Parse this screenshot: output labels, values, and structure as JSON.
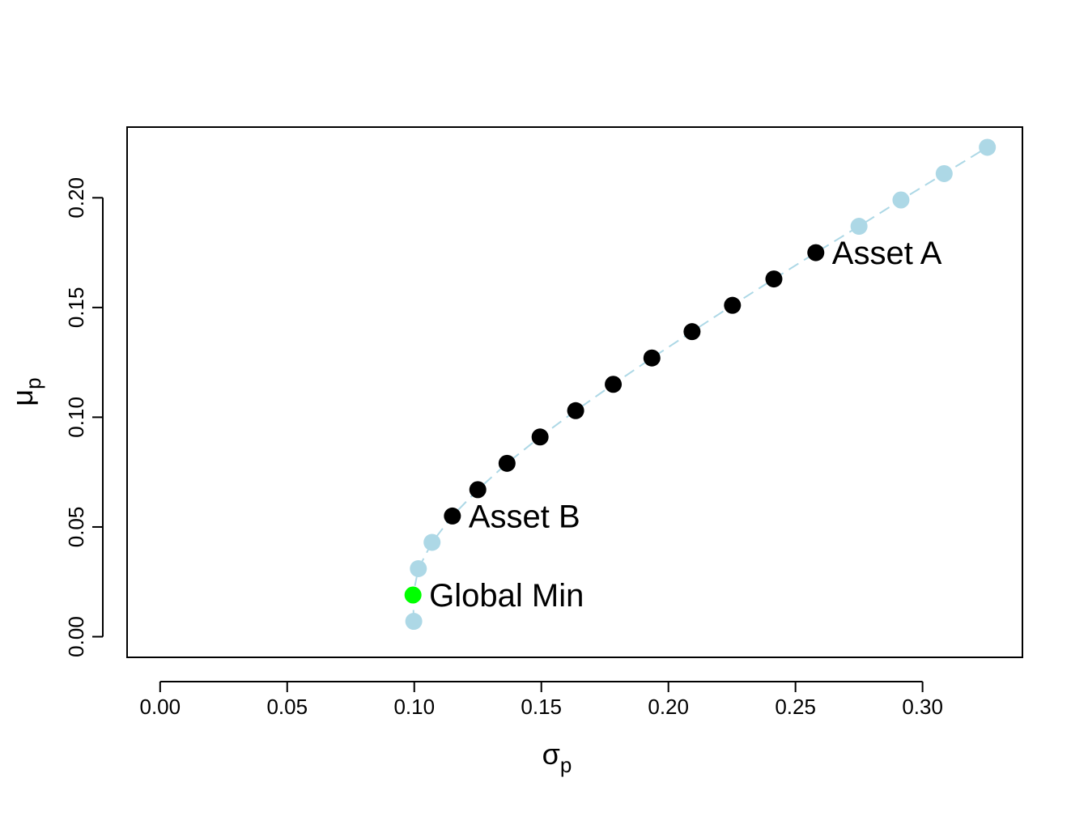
{
  "chart_data": {
    "type": "scatter",
    "title": "",
    "xlabel": {
      "symbol": "σ",
      "subscript": "p"
    },
    "ylabel": {
      "symbol": "μ",
      "subscript": "p"
    },
    "xlim": [
      -0.013,
      0.3393
    ],
    "ylim": [
      -0.0094,
      0.2322
    ],
    "x_ticks": [
      "0.00",
      "0.05",
      "0.10",
      "0.15",
      "0.20",
      "0.25",
      "0.30"
    ],
    "y_ticks": [
      "0.00",
      "0.05",
      "0.10",
      "0.15",
      "0.20"
    ],
    "grid": false,
    "legend": "none",
    "frontier_line": {
      "color": "#add8e6",
      "dashed": true
    },
    "series": [
      {
        "color": "#add8e6",
        "points": [
          {
            "x": 0.0998,
            "y": 0.007
          },
          {
            "x": 0.1016,
            "y": 0.031
          },
          {
            "x": 0.107,
            "y": 0.043
          },
          {
            "x": 0.275,
            "y": 0.187
          },
          {
            "x": 0.2915,
            "y": 0.199
          },
          {
            "x": 0.3085,
            "y": 0.211
          },
          {
            "x": 0.3255,
            "y": 0.223
          }
        ]
      },
      {
        "color": "#000000",
        "points": [
          {
            "x": 0.115,
            "y": 0.055
          },
          {
            "x": 0.125,
            "y": 0.067
          },
          {
            "x": 0.1365,
            "y": 0.079
          },
          {
            "x": 0.1495,
            "y": 0.091
          },
          {
            "x": 0.1635,
            "y": 0.103
          },
          {
            "x": 0.1783,
            "y": 0.115
          },
          {
            "x": 0.1935,
            "y": 0.127
          },
          {
            "x": 0.2093,
            "y": 0.139
          },
          {
            "x": 0.2252,
            "y": 0.151
          },
          {
            "x": 0.2415,
            "y": 0.163
          },
          {
            "x": 0.258,
            "y": 0.175
          }
        ]
      },
      {
        "color": "#00ff00",
        "points": [
          {
            "x": 0.0995,
            "y": 0.019
          }
        ]
      }
    ],
    "frontier_order": [
      {
        "x": 0.0998,
        "y": 0.007
      },
      {
        "x": 0.0995,
        "y": 0.019
      },
      {
        "x": 0.1016,
        "y": 0.031
      },
      {
        "x": 0.107,
        "y": 0.043
      },
      {
        "x": 0.115,
        "y": 0.055
      },
      {
        "x": 0.125,
        "y": 0.067
      },
      {
        "x": 0.1365,
        "y": 0.079
      },
      {
        "x": 0.1495,
        "y": 0.091
      },
      {
        "x": 0.1635,
        "y": 0.103
      },
      {
        "x": 0.1783,
        "y": 0.115
      },
      {
        "x": 0.1935,
        "y": 0.127
      },
      {
        "x": 0.2093,
        "y": 0.139
      },
      {
        "x": 0.2252,
        "y": 0.151
      },
      {
        "x": 0.2415,
        "y": 0.163
      },
      {
        "x": 0.258,
        "y": 0.175
      },
      {
        "x": 0.275,
        "y": 0.187
      },
      {
        "x": 0.2915,
        "y": 0.199
      },
      {
        "x": 0.3085,
        "y": 0.211
      },
      {
        "x": 0.3255,
        "y": 0.223
      }
    ],
    "annotations": [
      {
        "text": "Asset A",
        "x": 0.258,
        "y": 0.175
      },
      {
        "text": "Asset B",
        "x": 0.115,
        "y": 0.055
      },
      {
        "text": "Global Min",
        "x": 0.0995,
        "y": 0.019
      }
    ]
  }
}
